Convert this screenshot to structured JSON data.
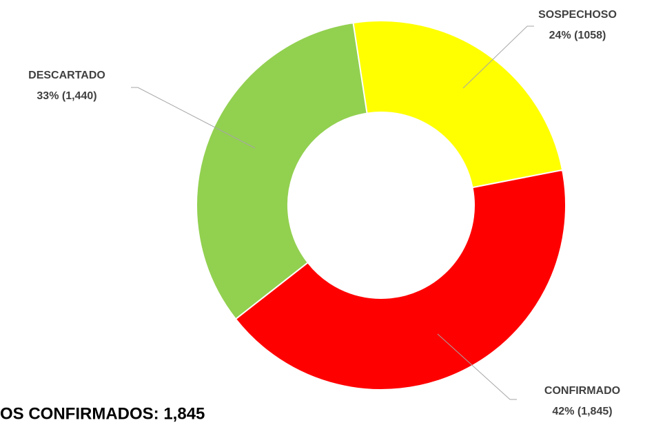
{
  "chart_data": {
    "type": "donut",
    "categories": [
      "SOSPECHOSO",
      "CONFIRMADO",
      "DESCARTADO"
    ],
    "values": [
      1058,
      1845,
      1440
    ],
    "value_labels": [
      "24% (1058)",
      "42% (1,845)",
      "33% (1,440)"
    ],
    "colors": [
      "#ffff00",
      "#ff0000",
      "#92d050"
    ],
    "footer": "OS CONFIRMADOS: 1,845"
  }
}
